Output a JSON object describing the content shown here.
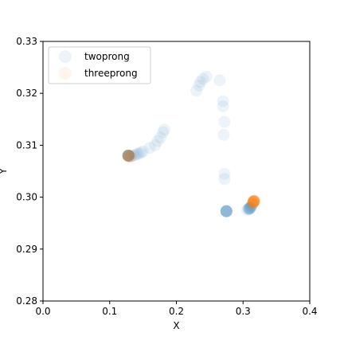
{
  "chart_data": {
    "type": "scatter",
    "title": "",
    "xlabel": "X",
    "ylabel": "Y",
    "xlim": [
      0.0,
      0.4
    ],
    "ylim": [
      0.28,
      0.33
    ],
    "xticks": [
      "0.0",
      "0.1",
      "0.2",
      "0.3",
      "0.4"
    ],
    "yticks": [
      "0.28",
      "0.29",
      "0.30",
      "0.31",
      "0.32",
      "0.33"
    ],
    "grid": false,
    "legend_position": "top-left",
    "series": [
      {
        "name": "twoprong",
        "color": "#1f77b4",
        "alpha": 0.08,
        "points": [
          [
            0.128,
            0.308
          ],
          [
            0.128,
            0.308
          ],
          [
            0.128,
            0.308
          ],
          [
            0.128,
            0.308
          ],
          [
            0.128,
            0.308
          ],
          [
            0.128,
            0.308
          ],
          [
            0.128,
            0.308
          ],
          [
            0.128,
            0.308
          ],
          [
            0.128,
            0.308
          ],
          [
            0.128,
            0.308
          ],
          [
            0.13,
            0.3078
          ],
          [
            0.132,
            0.3079
          ],
          [
            0.135,
            0.308
          ],
          [
            0.138,
            0.3081
          ],
          [
            0.141,
            0.3083
          ],
          [
            0.144,
            0.3084
          ],
          [
            0.147,
            0.3086
          ],
          [
            0.15,
            0.3088
          ],
          [
            0.16,
            0.3095
          ],
          [
            0.168,
            0.31
          ],
          [
            0.172,
            0.3108
          ],
          [
            0.176,
            0.3115
          ],
          [
            0.18,
            0.3125
          ],
          [
            0.182,
            0.313
          ],
          [
            0.23,
            0.3205
          ],
          [
            0.234,
            0.3215
          ],
          [
            0.236,
            0.3222
          ],
          [
            0.24,
            0.3228
          ],
          [
            0.245,
            0.3232
          ],
          [
            0.265,
            0.3225
          ],
          [
            0.27,
            0.3185
          ],
          [
            0.27,
            0.3175
          ],
          [
            0.272,
            0.3145
          ],
          [
            0.271,
            0.312
          ],
          [
            0.272,
            0.3045
          ],
          [
            0.272,
            0.3035
          ],
          [
            0.275,
            0.2973
          ],
          [
            0.275,
            0.2973
          ],
          [
            0.275,
            0.2973
          ],
          [
            0.275,
            0.2973
          ],
          [
            0.275,
            0.2973
          ],
          [
            0.275,
            0.2973
          ],
          [
            0.275,
            0.2973
          ],
          [
            0.275,
            0.2973
          ],
          [
            0.306,
            0.2975
          ],
          [
            0.308,
            0.2977
          ],
          [
            0.309,
            0.2978
          ],
          [
            0.31,
            0.2979
          ],
          [
            0.311,
            0.298
          ],
          [
            0.312,
            0.2982
          ],
          [
            0.313,
            0.2984
          ],
          [
            0.314,
            0.2986
          ],
          [
            0.308,
            0.2978
          ],
          [
            0.309,
            0.2977
          ],
          [
            0.31,
            0.2978
          ],
          [
            0.311,
            0.2979
          ]
        ]
      },
      {
        "name": "threeprong",
        "color": "#ff7f0e",
        "alpha": 0.08,
        "points": [
          [
            0.128,
            0.308
          ],
          [
            0.128,
            0.308
          ],
          [
            0.128,
            0.308
          ],
          [
            0.128,
            0.308
          ],
          [
            0.128,
            0.308
          ],
          [
            0.129,
            0.3078
          ],
          [
            0.13,
            0.3079
          ],
          [
            0.131,
            0.3078
          ],
          [
            0.314,
            0.2988
          ],
          [
            0.315,
            0.299
          ],
          [
            0.316,
            0.2991
          ],
          [
            0.316,
            0.2992
          ],
          [
            0.316,
            0.2992
          ],
          [
            0.316,
            0.2992
          ],
          [
            0.316,
            0.2992
          ],
          [
            0.316,
            0.2992
          ],
          [
            0.316,
            0.2992
          ],
          [
            0.316,
            0.2992
          ],
          [
            0.316,
            0.2992
          ],
          [
            0.316,
            0.2992
          ],
          [
            0.316,
            0.2992
          ],
          [
            0.316,
            0.2992
          ],
          [
            0.316,
            0.2992
          ],
          [
            0.317,
            0.2993
          ],
          [
            0.317,
            0.2993
          ],
          [
            0.317,
            0.2993
          ],
          [
            0.315,
            0.2989
          ],
          [
            0.315,
            0.2989
          ]
        ]
      }
    ]
  }
}
